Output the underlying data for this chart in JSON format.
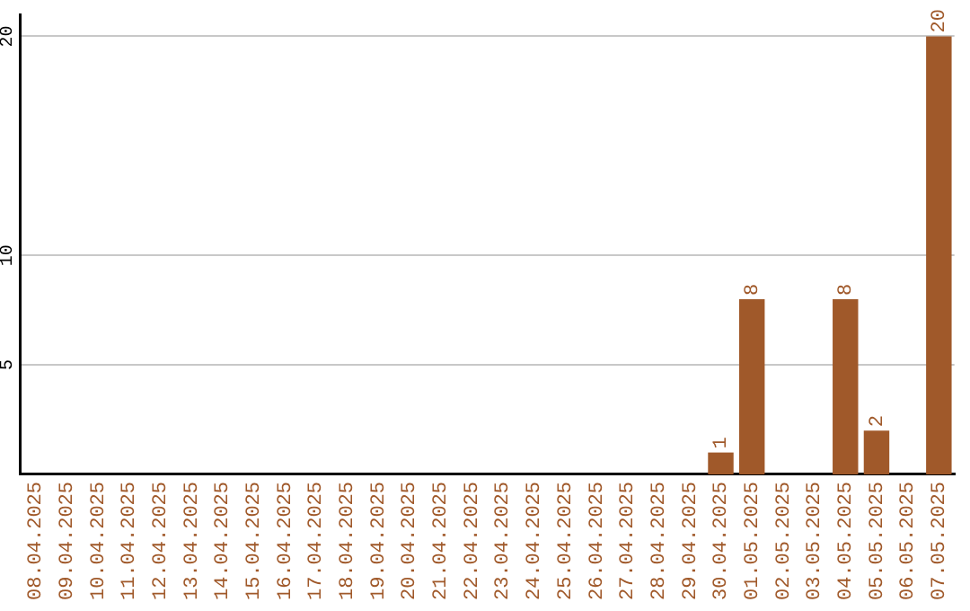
{
  "chart_data": {
    "type": "bar",
    "categories": [
      "08.04.2025",
      "09.04.2025",
      "10.04.2025",
      "11.04.2025",
      "12.04.2025",
      "13.04.2025",
      "14.04.2025",
      "15.04.2025",
      "16.04.2025",
      "17.04.2025",
      "18.04.2025",
      "19.04.2025",
      "20.04.2025",
      "21.04.2025",
      "22.04.2025",
      "23.04.2025",
      "24.04.2025",
      "25.04.2025",
      "26.04.2025",
      "27.04.2025",
      "28.04.2025",
      "29.04.2025",
      "30.04.2025",
      "01.05.2025",
      "02.05.2025",
      "03.05.2025",
      "04.05.2025",
      "05.05.2025",
      "06.05.2025",
      "07.05.2025"
    ],
    "values": [
      0,
      0,
      0,
      0,
      0,
      0,
      0,
      0,
      0,
      0,
      0,
      0,
      0,
      0,
      0,
      0,
      0,
      0,
      0,
      0,
      0,
      0,
      1,
      8,
      0,
      0,
      8,
      2,
      0,
      20
    ],
    "value_labels": [
      null,
      null,
      null,
      null,
      null,
      null,
      null,
      null,
      null,
      null,
      null,
      null,
      null,
      null,
      null,
      null,
      null,
      null,
      null,
      null,
      null,
      null,
      "1",
      "8",
      null,
      null,
      "8",
      "2",
      null,
      "20"
    ],
    "color": "#a0592a",
    "ylim": [
      0,
      21
    ],
    "yticks": [
      5,
      10,
      20
    ],
    "grid": "y"
  }
}
